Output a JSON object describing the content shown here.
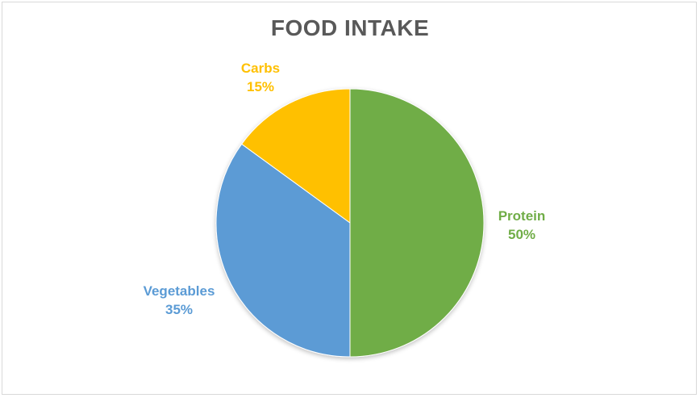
{
  "chart_data": {
    "type": "pie",
    "title": "FOOD INTAKE",
    "categories": [
      "Protein",
      "Vegetables",
      "Carbs"
    ],
    "values": [
      50,
      35,
      15
    ],
    "unit": "%",
    "colors": [
      "#70AD47",
      "#5B9BD5",
      "#FFC000"
    ],
    "start_angle_deg": 0,
    "direction": "clockwise",
    "data_labels": [
      {
        "category": "Protein",
        "value_label": "50%",
        "position": "outside-right"
      },
      {
        "category": "Vegetables",
        "value_label": "35%",
        "position": "outside-left"
      },
      {
        "category": "Carbs",
        "value_label": "15%",
        "position": "outside-top-left"
      }
    ],
    "legend": "none"
  },
  "labels": {
    "protein": {
      "name": "Protein",
      "pct": "50%"
    },
    "vegetables": {
      "name": "Vegetables",
      "pct": "35%"
    },
    "carbs": {
      "name": "Carbs",
      "pct": "15%"
    }
  }
}
